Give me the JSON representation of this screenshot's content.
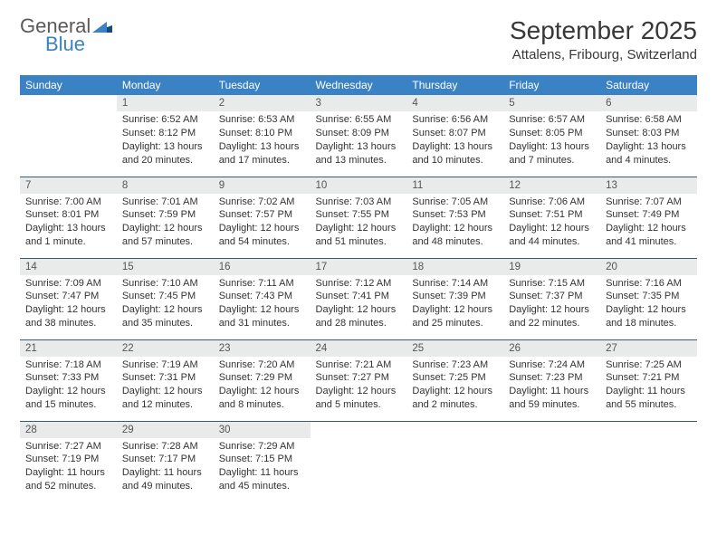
{
  "logo": {
    "general": "General",
    "blue": "Blue"
  },
  "colors": {
    "header_bg": "#3b82c4",
    "header_text": "#ffffff",
    "daynum_bg": "#e9eaea",
    "row_border": "#3b5a78",
    "title_color": "#383838",
    "body_text": "#333333"
  },
  "title": "September 2025",
  "location": "Attalens, Fribourg, Switzerland",
  "weekdays": [
    "Sunday",
    "Monday",
    "Tuesday",
    "Wednesday",
    "Thursday",
    "Friday",
    "Saturday"
  ],
  "weeks": [
    [
      {
        "day": "",
        "sunrise": "",
        "sunset": "",
        "daylight": ""
      },
      {
        "day": "1",
        "sunrise": "Sunrise: 6:52 AM",
        "sunset": "Sunset: 8:12 PM",
        "daylight": "Daylight: 13 hours and 20 minutes."
      },
      {
        "day": "2",
        "sunrise": "Sunrise: 6:53 AM",
        "sunset": "Sunset: 8:10 PM",
        "daylight": "Daylight: 13 hours and 17 minutes."
      },
      {
        "day": "3",
        "sunrise": "Sunrise: 6:55 AM",
        "sunset": "Sunset: 8:09 PM",
        "daylight": "Daylight: 13 hours and 13 minutes."
      },
      {
        "day": "4",
        "sunrise": "Sunrise: 6:56 AM",
        "sunset": "Sunset: 8:07 PM",
        "daylight": "Daylight: 13 hours and 10 minutes."
      },
      {
        "day": "5",
        "sunrise": "Sunrise: 6:57 AM",
        "sunset": "Sunset: 8:05 PM",
        "daylight": "Daylight: 13 hours and 7 minutes."
      },
      {
        "day": "6",
        "sunrise": "Sunrise: 6:58 AM",
        "sunset": "Sunset: 8:03 PM",
        "daylight": "Daylight: 13 hours and 4 minutes."
      }
    ],
    [
      {
        "day": "7",
        "sunrise": "Sunrise: 7:00 AM",
        "sunset": "Sunset: 8:01 PM",
        "daylight": "Daylight: 13 hours and 1 minute."
      },
      {
        "day": "8",
        "sunrise": "Sunrise: 7:01 AM",
        "sunset": "Sunset: 7:59 PM",
        "daylight": "Daylight: 12 hours and 57 minutes."
      },
      {
        "day": "9",
        "sunrise": "Sunrise: 7:02 AM",
        "sunset": "Sunset: 7:57 PM",
        "daylight": "Daylight: 12 hours and 54 minutes."
      },
      {
        "day": "10",
        "sunrise": "Sunrise: 7:03 AM",
        "sunset": "Sunset: 7:55 PM",
        "daylight": "Daylight: 12 hours and 51 minutes."
      },
      {
        "day": "11",
        "sunrise": "Sunrise: 7:05 AM",
        "sunset": "Sunset: 7:53 PM",
        "daylight": "Daylight: 12 hours and 48 minutes."
      },
      {
        "day": "12",
        "sunrise": "Sunrise: 7:06 AM",
        "sunset": "Sunset: 7:51 PM",
        "daylight": "Daylight: 12 hours and 44 minutes."
      },
      {
        "day": "13",
        "sunrise": "Sunrise: 7:07 AM",
        "sunset": "Sunset: 7:49 PM",
        "daylight": "Daylight: 12 hours and 41 minutes."
      }
    ],
    [
      {
        "day": "14",
        "sunrise": "Sunrise: 7:09 AM",
        "sunset": "Sunset: 7:47 PM",
        "daylight": "Daylight: 12 hours and 38 minutes."
      },
      {
        "day": "15",
        "sunrise": "Sunrise: 7:10 AM",
        "sunset": "Sunset: 7:45 PM",
        "daylight": "Daylight: 12 hours and 35 minutes."
      },
      {
        "day": "16",
        "sunrise": "Sunrise: 7:11 AM",
        "sunset": "Sunset: 7:43 PM",
        "daylight": "Daylight: 12 hours and 31 minutes."
      },
      {
        "day": "17",
        "sunrise": "Sunrise: 7:12 AM",
        "sunset": "Sunset: 7:41 PM",
        "daylight": "Daylight: 12 hours and 28 minutes."
      },
      {
        "day": "18",
        "sunrise": "Sunrise: 7:14 AM",
        "sunset": "Sunset: 7:39 PM",
        "daylight": "Daylight: 12 hours and 25 minutes."
      },
      {
        "day": "19",
        "sunrise": "Sunrise: 7:15 AM",
        "sunset": "Sunset: 7:37 PM",
        "daylight": "Daylight: 12 hours and 22 minutes."
      },
      {
        "day": "20",
        "sunrise": "Sunrise: 7:16 AM",
        "sunset": "Sunset: 7:35 PM",
        "daylight": "Daylight: 12 hours and 18 minutes."
      }
    ],
    [
      {
        "day": "21",
        "sunrise": "Sunrise: 7:18 AM",
        "sunset": "Sunset: 7:33 PM",
        "daylight": "Daylight: 12 hours and 15 minutes."
      },
      {
        "day": "22",
        "sunrise": "Sunrise: 7:19 AM",
        "sunset": "Sunset: 7:31 PM",
        "daylight": "Daylight: 12 hours and 12 minutes."
      },
      {
        "day": "23",
        "sunrise": "Sunrise: 7:20 AM",
        "sunset": "Sunset: 7:29 PM",
        "daylight": "Daylight: 12 hours and 8 minutes."
      },
      {
        "day": "24",
        "sunrise": "Sunrise: 7:21 AM",
        "sunset": "Sunset: 7:27 PM",
        "daylight": "Daylight: 12 hours and 5 minutes."
      },
      {
        "day": "25",
        "sunrise": "Sunrise: 7:23 AM",
        "sunset": "Sunset: 7:25 PM",
        "daylight": "Daylight: 12 hours and 2 minutes."
      },
      {
        "day": "26",
        "sunrise": "Sunrise: 7:24 AM",
        "sunset": "Sunset: 7:23 PM",
        "daylight": "Daylight: 11 hours and 59 minutes."
      },
      {
        "day": "27",
        "sunrise": "Sunrise: 7:25 AM",
        "sunset": "Sunset: 7:21 PM",
        "daylight": "Daylight: 11 hours and 55 minutes."
      }
    ],
    [
      {
        "day": "28",
        "sunrise": "Sunrise: 7:27 AM",
        "sunset": "Sunset: 7:19 PM",
        "daylight": "Daylight: 11 hours and 52 minutes."
      },
      {
        "day": "29",
        "sunrise": "Sunrise: 7:28 AM",
        "sunset": "Sunset: 7:17 PM",
        "daylight": "Daylight: 11 hours and 49 minutes."
      },
      {
        "day": "30",
        "sunrise": "Sunrise: 7:29 AM",
        "sunset": "Sunset: 7:15 PM",
        "daylight": "Daylight: 11 hours and 45 minutes."
      },
      {
        "day": "",
        "sunrise": "",
        "sunset": "",
        "daylight": ""
      },
      {
        "day": "",
        "sunrise": "",
        "sunset": "",
        "daylight": ""
      },
      {
        "day": "",
        "sunrise": "",
        "sunset": "",
        "daylight": ""
      },
      {
        "day": "",
        "sunrise": "",
        "sunset": "",
        "daylight": ""
      }
    ]
  ]
}
